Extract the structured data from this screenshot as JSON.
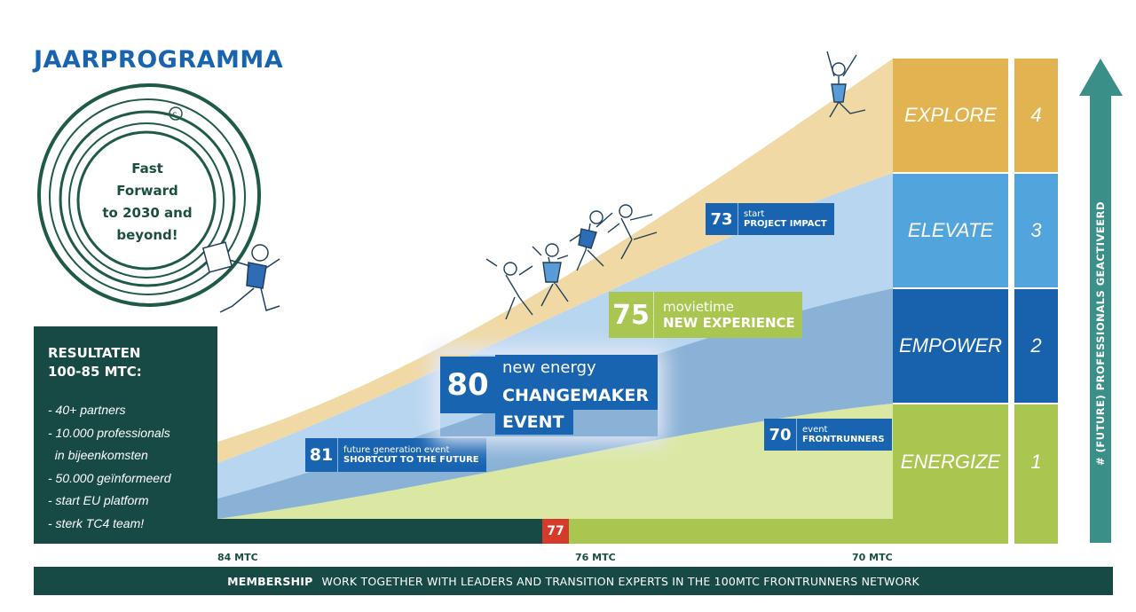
{
  "title": "JAARPROGRAMMA",
  "intro": {
    "lines": [
      "Fast",
      "Forward",
      "to 2030 and",
      "beyond!"
    ]
  },
  "results": {
    "heading_1": "RESULTATEN",
    "heading_2": "100-85 MTC:",
    "items": [
      "- 40+ partners",
      "- 10.000 professionals",
      "  in bijeenkomsten",
      "- 50.000 geïnformeerd",
      "- start EU platform",
      "- sterk TC4 team!"
    ]
  },
  "stages": [
    {
      "name": "EXPLORE",
      "number": "4",
      "color": "#e2b451"
    },
    {
      "name": "ELEVATE",
      "number": "3",
      "color": "#52a4dd"
    },
    {
      "name": "EMPOWER",
      "number": "2",
      "color": "#1862ad"
    },
    {
      "name": "ENERGIZE",
      "number": "1",
      "color": "#a9c750"
    }
  ],
  "events": [
    {
      "number": "81",
      "subtitle": "future generation event",
      "title": "SHORTCUT TO THE FUTURE"
    },
    {
      "number": "80",
      "subtitle": "new energy",
      "title_1": "CHANGEMAKER",
      "title_2": "EVENT"
    },
    {
      "number": "75",
      "subtitle": "movietime",
      "title": "NEW EXPERIENCE"
    },
    {
      "number": "73",
      "subtitle": "start",
      "title": "PROJECT IMPACT"
    },
    {
      "number": "70",
      "subtitle": "event",
      "title": "FRONTRUNNERS"
    }
  ],
  "marker": "77",
  "timeline": {
    "labels": [
      "84 MTC",
      "76 MTC",
      "70 MTC"
    ]
  },
  "membership": {
    "label": "MEMBERSHIP",
    "text": "WORK TOGETHER WITH LEADERS AND TRANSITION EXPERTS IN THE 100MTC FRONTRUNNERS NETWORK"
  },
  "vertical_axis": "# (FUTURE) PROFESSIONALS GEACTIVEERD",
  "colors": {
    "dark_green": "#174a44",
    "blue": "#1864b0",
    "green": "#a9c750",
    "teal_arrow": "#3a8f88",
    "red": "#d63a2a"
  }
}
